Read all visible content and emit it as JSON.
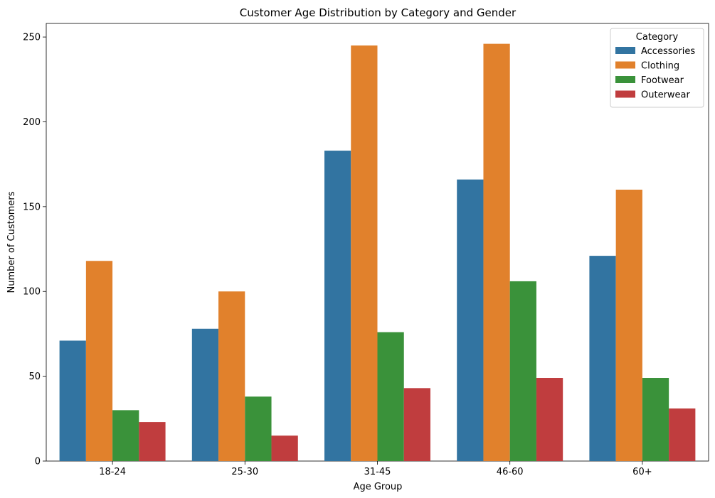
{
  "chart_data": {
    "type": "bar",
    "title": "Customer Age Distribution by Category and Gender",
    "xlabel": "Age Group",
    "ylabel": "Number of Customers",
    "categories": [
      "18-24",
      "25-30",
      "31-45",
      "46-60",
      "60+"
    ],
    "ylim": [
      0,
      258
    ],
    "yticks": [
      0,
      50,
      100,
      150,
      200,
      250
    ],
    "grid": false,
    "legend": {
      "title": "Category",
      "placement": "top-right"
    },
    "series": [
      {
        "name": "Accessories",
        "color": "#3274a1",
        "values": [
          71,
          78,
          183,
          166,
          121
        ]
      },
      {
        "name": "Clothing",
        "color": "#e1812c",
        "values": [
          118,
          100,
          245,
          246,
          160
        ]
      },
      {
        "name": "Footwear",
        "color": "#3a923a",
        "values": [
          30,
          38,
          76,
          106,
          49
        ]
      },
      {
        "name": "Outerwear",
        "color": "#c03d3e",
        "values": [
          23,
          15,
          43,
          49,
          31
        ]
      }
    ]
  }
}
